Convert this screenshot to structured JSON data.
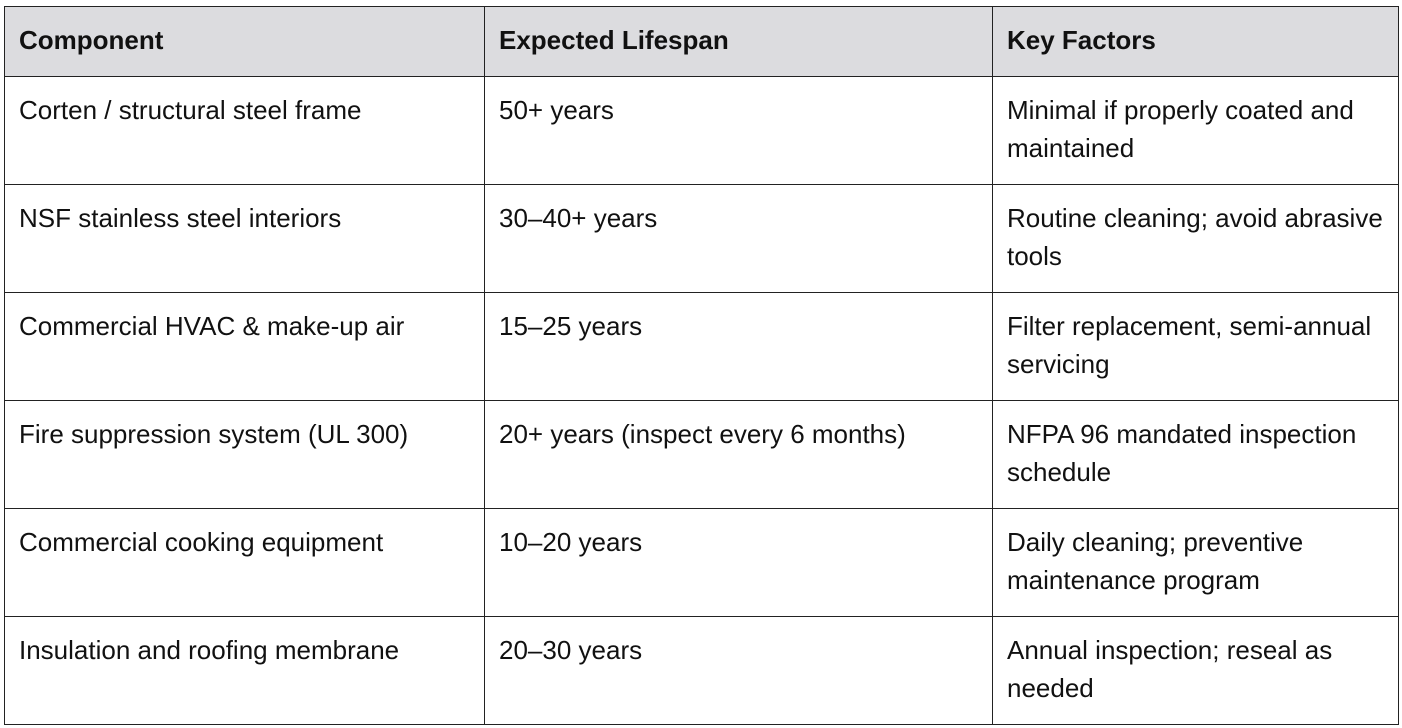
{
  "table": {
    "header": [
      "Component",
      "Expected Lifespan",
      "Key Factors"
    ],
    "rows": [
      [
        "Corten / structural steel frame",
        "50+ years",
        "Minimal if properly coated and maintained"
      ],
      [
        "NSF stainless steel interiors",
        "30–40+ years",
        "Routine cleaning; avoid abrasive tools"
      ],
      [
        "Commercial HVAC & make-up air",
        "15–25 years",
        "Filter replacement, semi-annual servicing"
      ],
      [
        "Fire suppression system (UL 300)",
        "20+ years (inspect every 6 months)",
        "NFPA 96 mandated inspection schedule"
      ],
      [
        "Commercial cooking equipment",
        "10–20 years",
        "Daily cleaning; preventive maintenance program"
      ],
      [
        "Insulation and roofing membrane",
        "20–30 years",
        "Annual inspection; reseal as needed"
      ]
    ]
  }
}
